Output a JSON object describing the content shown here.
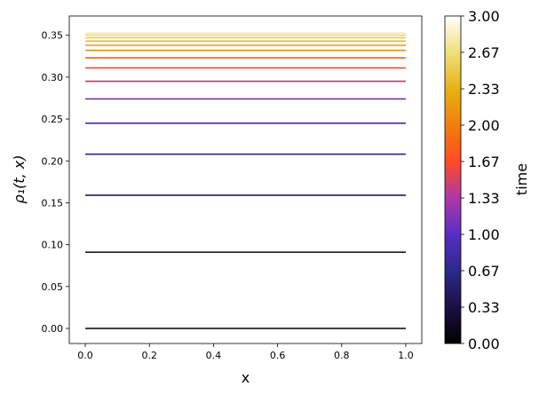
{
  "chart_data": {
    "type": "line",
    "xlabel": "x",
    "ylabel": "ρ₁(t, x)",
    "xlim": [
      -0.05,
      1.05
    ],
    "ylim": [
      -0.018,
      0.373
    ],
    "x_ticks": [
      0.0,
      0.2,
      0.4,
      0.6,
      0.8,
      1.0
    ],
    "x_tick_labels": [
      "0.0",
      "0.2",
      "0.4",
      "0.6",
      "0.8",
      "1.0"
    ],
    "y_ticks": [
      0.0,
      0.05,
      0.1,
      0.15,
      0.2,
      0.25,
      0.3,
      0.35
    ],
    "y_tick_labels": [
      "0.00",
      "0.05",
      "0.10",
      "0.15",
      "0.20",
      "0.25",
      "0.30",
      "0.35"
    ],
    "grid": false,
    "legend": "none",
    "x": [
      0.0,
      1.0
    ],
    "series": [
      {
        "time": 0.0,
        "color": "#000000",
        "values": [
          0.0,
          0.0
        ]
      },
      {
        "time": 0.2,
        "color": "#0a0520",
        "values": [
          0.091,
          0.091
        ]
      },
      {
        "time": 0.4,
        "color": "#1f1a5c",
        "values": [
          0.159,
          0.159
        ]
      },
      {
        "time": 0.6,
        "color": "#2d2a8e",
        "values": [
          0.208,
          0.208
        ]
      },
      {
        "time": 0.8,
        "color": "#4c2bab",
        "values": [
          0.245,
          0.245
        ]
      },
      {
        "time": 1.0,
        "color": "#7a34a0",
        "values": [
          0.274,
          0.274
        ]
      },
      {
        "time": 1.2,
        "color": "#b83a6c",
        "values": [
          0.295,
          0.295
        ]
      },
      {
        "time": 1.4,
        "color": "#ea4330",
        "values": [
          0.311,
          0.311
        ]
      },
      {
        "time": 1.6,
        "color": "#f2650f",
        "values": [
          0.323,
          0.323
        ]
      },
      {
        "time": 1.8,
        "color": "#f4870e",
        "values": [
          0.332,
          0.332
        ]
      },
      {
        "time": 2.0,
        "color": "#eea510",
        "values": [
          0.338,
          0.338
        ]
      },
      {
        "time": 2.2,
        "color": "#e8bc24",
        "values": [
          0.343,
          0.343
        ]
      },
      {
        "time": 2.4,
        "color": "#e9cd55",
        "values": [
          0.347,
          0.347
        ]
      },
      {
        "time": 2.6,
        "color": "#eedc86",
        "values": [
          0.35,
          0.35
        ]
      },
      {
        "time": 2.8,
        "color": "#f3e8b2",
        "values": [
          0.352,
          0.352
        ]
      },
      {
        "time": 3.0,
        "color": "#f8f1d4",
        "values": [
          0.353,
          0.353
        ]
      }
    ],
    "colorbar": {
      "label": "time",
      "range": [
        0.0,
        3.0
      ],
      "ticks": [
        0.0,
        0.333,
        0.667,
        1.0,
        1.333,
        1.667,
        2.0,
        2.333,
        2.667,
        3.0
      ],
      "tick_labels": [
        "0.00",
        "0.33",
        "0.67",
        "1.00",
        "1.33",
        "1.67",
        "2.00",
        "2.33",
        "2.67",
        "3.00"
      ],
      "stops": [
        {
          "pos": 0.0,
          "color": "#000000"
        },
        {
          "pos": 0.111,
          "color": "#1c1044"
        },
        {
          "pos": 0.222,
          "color": "#2a2a8a"
        },
        {
          "pos": 0.333,
          "color": "#5a2dc4"
        },
        {
          "pos": 0.444,
          "color": "#b037a8"
        },
        {
          "pos": 0.555,
          "color": "#ff4a24"
        },
        {
          "pos": 0.666,
          "color": "#f37e0c"
        },
        {
          "pos": 0.777,
          "color": "#e6b214"
        },
        {
          "pos": 0.888,
          "color": "#f0df7a"
        },
        {
          "pos": 1.0,
          "color": "#ffffff"
        }
      ]
    }
  }
}
